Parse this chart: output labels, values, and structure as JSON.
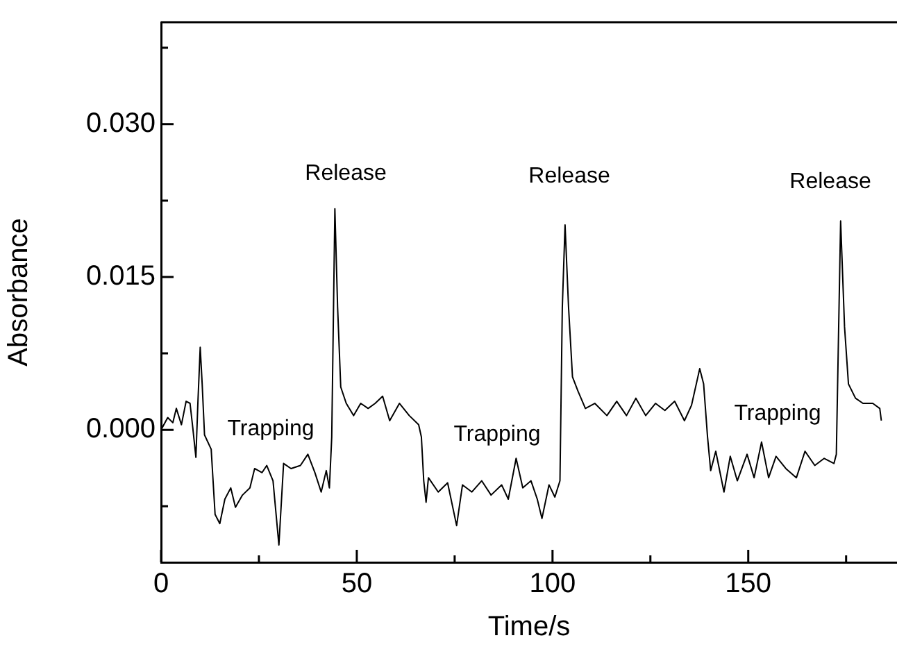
{
  "chart_data": {
    "type": "line",
    "xlabel": "Time/s",
    "ylabel": "Absorbance",
    "x": [
      0,
      1.7,
      3.0,
      3.9,
      5.2,
      6.4,
      7.4,
      8.1,
      8.9,
      9.4,
      10.0,
      10.5,
      11.1,
      12.8,
      13.8,
      15.0,
      16.3,
      17.8,
      19.0,
      20.8,
      22.7,
      23.9,
      25.8,
      27.0,
      28.6,
      30.1,
      31.3,
      33.2,
      35.6,
      37.5,
      39.3,
      40.9,
      42.2,
      43.0,
      43.6,
      44.4,
      45.1,
      45.9,
      47.3,
      49.2,
      51.0,
      52.9,
      54.7,
      56.6,
      58.4,
      60.9,
      63.4,
      65.8,
      66.5,
      67.1,
      67.7,
      68.3,
      70.8,
      73.2,
      75.5,
      77.0,
      79.4,
      81.9,
      84.3,
      87.0,
      88.7,
      90.7,
      92.4,
      94.5,
      96.1,
      97.3,
      99.1,
      100.6,
      101.9,
      102.5,
      103.2,
      104.1,
      105.1,
      106.5,
      108.4,
      110.8,
      113.9,
      116.4,
      118.9,
      121.3,
      123.8,
      126.3,
      128.7,
      131.2,
      133.7,
      135.5,
      137.6,
      138.6,
      139.6,
      140.4,
      141.7,
      143.8,
      145.4,
      147.2,
      149.7,
      151.5,
      153.4,
      155.2,
      157.1,
      159.6,
      162.3,
      164.5,
      167.0,
      169.4,
      171.9,
      172.5,
      173.6,
      174.6,
      175.6,
      177.4,
      179.3,
      181.8,
      183.6,
      184.0
    ],
    "series": [
      {
        "color": "#000000",
        "values": [
          0,
          0.0012,
          0.0007,
          0.0021,
          0.0005,
          0.0028,
          0.0026,
          0.0002,
          -0.0027,
          0.0026,
          0.0081,
          0.0045,
          -0.0005,
          -0.0019,
          -0.0083,
          -0.0092,
          -0.0068,
          -0.0057,
          -0.0076,
          -0.0064,
          -0.0057,
          -0.0038,
          -0.0042,
          -0.0035,
          -0.005,
          -0.0113,
          -0.0033,
          -0.0038,
          -0.0035,
          -0.0024,
          -0.0042,
          -0.0061,
          -0.004,
          -0.0057,
          -0.0007,
          0.0217,
          0.012,
          0.0042,
          0.0026,
          0.0014,
          0.0026,
          0.0021,
          0.0026,
          0.0033,
          0.0009,
          0.0026,
          0.0014,
          0.0005,
          -0.0007,
          -0.005,
          -0.0071,
          -0.0047,
          -0.0061,
          -0.0052,
          -0.0094,
          -0.0054,
          -0.0061,
          -0.005,
          -0.0064,
          -0.0054,
          -0.0068,
          -0.0028,
          -0.0057,
          -0.005,
          -0.0068,
          -0.0087,
          -0.0054,
          -0.0066,
          -0.005,
          0.012,
          0.0201,
          0.012,
          0.0052,
          0.0038,
          0.0021,
          0.0026,
          0.0014,
          0.0028,
          0.0014,
          0.0031,
          0.0014,
          0.0026,
          0.0019,
          0.0028,
          0.0009,
          0.0024,
          0.006,
          0.0045,
          -0.0007,
          -0.004,
          -0.0021,
          -0.0061,
          -0.0026,
          -0.005,
          -0.0024,
          -0.0047,
          -0.0012,
          -0.0047,
          -0.0026,
          -0.0038,
          -0.0047,
          -0.0021,
          -0.0035,
          -0.0028,
          -0.0033,
          -0.0024,
          0.0205,
          0.0101,
          0.0045,
          0.0031,
          0.0026,
          0.0026,
          0.0021,
          0.0009
        ]
      }
    ],
    "xlim": [
      0,
      188
    ],
    "xticks": [
      0,
      {
        "value": 25,
        "label": null
      },
      50,
      {
        "value": 75,
        "label": null
      },
      100,
      {
        "value": 125,
        "label": null
      },
      150,
      {
        "value": 175,
        "label": null
      }
    ],
    "ylim": [
      -0.013,
      0.04
    ],
    "yticks": [
      {
        "value": -0.0075,
        "label": null
      },
      {
        "value": 0,
        "label": "0.000"
      },
      {
        "value": 0.0075,
        "label": null
      },
      {
        "value": 0.015,
        "label": "0.015"
      },
      {
        "value": 0.0225,
        "label": null
      },
      {
        "value": 0.03,
        "label": "0.030"
      },
      {
        "value": 0.0375,
        "label": null
      }
    ],
    "annotations": [
      "Release",
      "Release",
      "Release",
      "Trapping",
      "Trapping",
      "Trapping"
    ],
    "grid": false,
    "legend": false,
    "marker": "none",
    "line_style": "solid"
  }
}
